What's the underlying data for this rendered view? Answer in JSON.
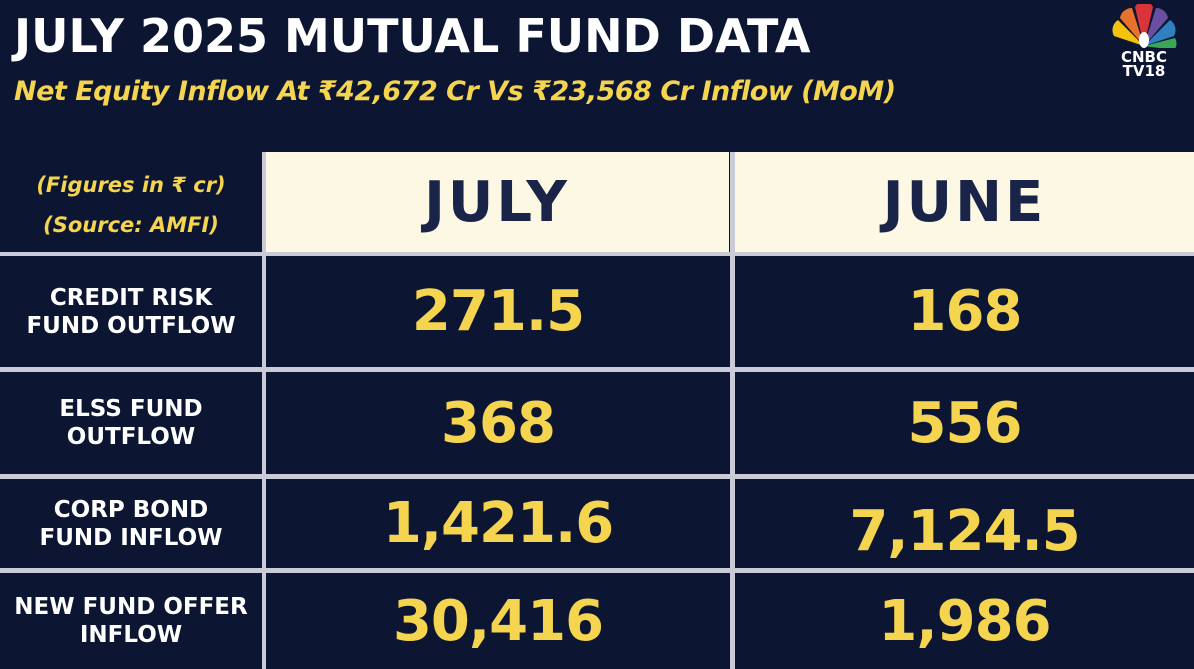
{
  "header": {
    "title": "JULY 2025 MUTUAL FUND DATA",
    "subtitle": "Net Equity Inflow At ₹42,672 Cr Vs ₹23,568 Cr Inflow (MoM)"
  },
  "logo": {
    "line1": "CNBC",
    "line2": "TV18"
  },
  "table": {
    "note_units": "(Figures in ₹ cr)",
    "note_source": "(Source: AMFI)",
    "columns": [
      "JULY",
      "JUNE"
    ],
    "rows": [
      {
        "label": "CREDIT RISK\nFUND OUTFLOW",
        "july": "271.5",
        "june": "168"
      },
      {
        "label": "ELSS FUND\nOUTFLOW",
        "july": "368",
        "june": "556"
      },
      {
        "label": "CORP BOND\nFUND INFLOW",
        "july": "1,421.6",
        "june": "7,124.5"
      },
      {
        "label": "NEW FUND OFFER\nINFLOW",
        "july": "30,416",
        "june": "1,986"
      }
    ]
  },
  "colors": {
    "background": "#0c1633",
    "accent": "#f5d44f",
    "header_bg": "#fdf8e4",
    "header_text": "#1a2448"
  }
}
